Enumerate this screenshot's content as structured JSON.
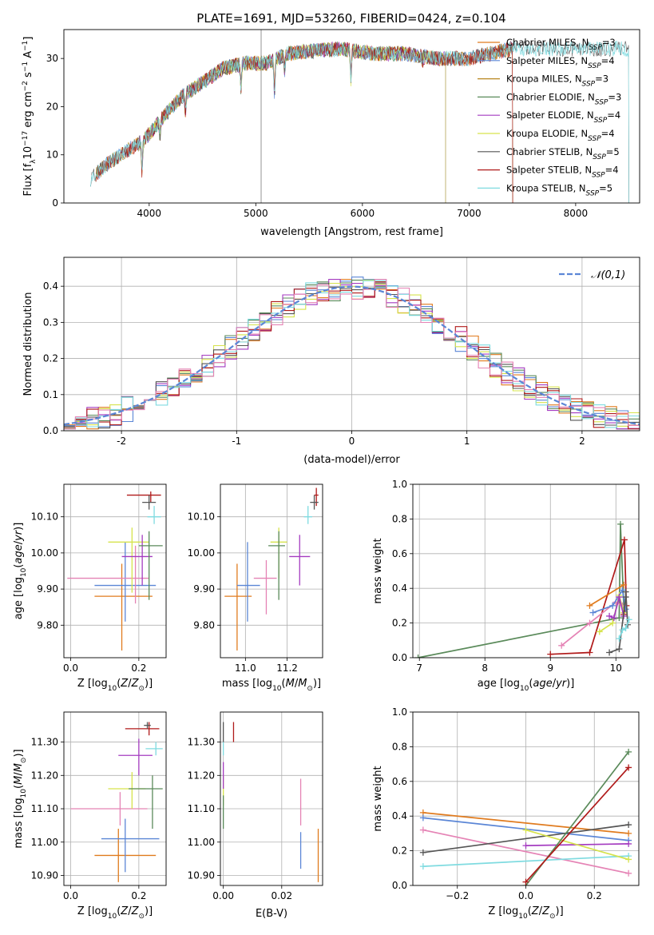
{
  "title": "PLATE=1691, MJD=53260, FIBERID=0424, z=0.104",
  "colors": {
    "chabrier_miles": "#e07b1e",
    "salpeter_miles": "#5b86d6",
    "kroupa_miles": "#b8861e",
    "chabrier_elodie": "#5a8a5a",
    "salpeter_elodie": "#a43bc0",
    "kroupa_elodie": "#d6e34c",
    "chabrier_stelib": "#555555",
    "salpeter_stelib": "#b01a1a",
    "kroupa_stelib": "#7fdbe0",
    "pink": "#e583b5",
    "normal": "#5b86d6",
    "grid": "#b0b0b0"
  },
  "chart_data": [
    {
      "type": "line",
      "xlabel": "wavelength [Angstrom, rest frame]",
      "ylabel": "Flux [f_λ 10^-17 erg cm^-2 s^-1 A^-1]",
      "xlim": [
        3200,
        8600
      ],
      "ylim": [
        0,
        36
      ],
      "xticks": [
        4000,
        5000,
        6000,
        7000,
        8000
      ],
      "yticks": [
        0,
        10,
        20,
        30
      ],
      "legend_position": "right",
      "series": [
        {
          "name": "Chabrier MILES, N_SSP=3",
          "key": "chabrier_miles",
          "range": [
            3500,
            7410
          ]
        },
        {
          "name": "Salpeter MILES, N_SSP=4",
          "key": "salpeter_miles",
          "range": [
            3500,
            7410
          ]
        },
        {
          "name": "Kroupa MILES, N_SSP=3",
          "key": "kroupa_miles",
          "range": [
            3500,
            7410
          ]
        },
        {
          "name": "Chabrier ELODIE, N_SSP=3",
          "key": "chabrier_elodie",
          "range": [
            3900,
            6780
          ]
        },
        {
          "name": "Salpeter ELODIE, N_SSP=4",
          "key": "salpeter_elodie",
          "range": [
            3900,
            6780
          ]
        },
        {
          "name": "Kroupa ELODIE, N_SSP=4",
          "key": "kroupa_elodie",
          "range": [
            3900,
            6780
          ]
        },
        {
          "name": "Chabrier STELIB, N_SSP=5",
          "key": "chabrier_stelib",
          "range": [
            3450,
            8500
          ]
        },
        {
          "name": "Salpeter STELIB, N_SSP=4",
          "key": "salpeter_stelib",
          "range": [
            3500,
            7410
          ]
        },
        {
          "name": "Kroupa STELIB, N_SSP=5",
          "key": "kroupa_stelib",
          "range": [
            3450,
            8500
          ]
        }
      ],
      "continuum": {
        "x": [
          3450,
          3600,
          3800,
          3950,
          4100,
          4300,
          4500,
          4700,
          4900,
          5100,
          5300,
          5500,
          5800,
          6100,
          6400,
          6700,
          7000,
          7400
        ],
        "y": [
          5,
          8,
          11,
          13,
          17,
          22,
          25,
          28,
          29,
          29,
          31,
          31.5,
          32,
          31,
          31,
          30,
          30,
          32
        ]
      }
    },
    {
      "type": "histogram",
      "xlabel": "(data-model)/error",
      "ylabel": "Normed distribution",
      "xlim": [
        -2.5,
        2.5
      ],
      "ylim": [
        0,
        0.48
      ],
      "xticks": [
        -2,
        -1,
        0,
        1,
        2
      ],
      "yticks": [
        0.0,
        0.1,
        0.2,
        0.3,
        0.4
      ],
      "bin_width": 0.1,
      "legend": "𝒩(0,1)",
      "legend_position": "top-right"
    },
    {
      "type": "errorbar",
      "xlabel": "Z [log10(Z/Z⊙)]",
      "ylabel": "age  [log10(age/yr)]",
      "xlim": [
        -0.02,
        0.28
      ],
      "ylim": [
        9.71,
        10.19
      ],
      "xticks": [
        0.0,
        0.2
      ],
      "yticks": [
        9.8,
        9.9,
        10.0,
        10.1
      ],
      "points": [
        {
          "key": "chabrier_miles",
          "x": 0.15,
          "xerr": [
            0.08,
            0.09
          ],
          "y": 9.88,
          "yerr": [
            0.15,
            0.09
          ]
        },
        {
          "key": "salpeter_miles",
          "x": 0.16,
          "xerr": [
            0.09,
            0.09
          ],
          "y": 9.91,
          "yerr": [
            0.1,
            0.12
          ]
        },
        {
          "key": "pink",
          "x": 0.19,
          "xerr": [
            0.2,
            0.04
          ],
          "y": 9.93,
          "yerr": [
            0.07,
            0.09
          ]
        },
        {
          "key": "kroupa_elodie",
          "x": 0.18,
          "xerr": [
            0.07,
            0.05
          ],
          "y": 10.03,
          "yerr": [
            0.14,
            0.04
          ]
        },
        {
          "key": "salpeter_elodie",
          "x": 0.21,
          "xerr": [
            0.06,
            0.03
          ],
          "y": 9.99,
          "yerr": [
            0.08,
            0.06
          ]
        },
        {
          "key": "chabrier_elodie",
          "x": 0.23,
          "xerr": [
            0.03,
            0.04
          ],
          "y": 10.02,
          "yerr": [
            0.15,
            0.04
          ]
        },
        {
          "key": "kroupa_stelib",
          "x": 0.245,
          "xerr": [
            0.02,
            0.02
          ],
          "y": 10.1,
          "yerr": [
            0.02,
            0.03
          ]
        },
        {
          "key": "salpeter_stelib",
          "x": 0.235,
          "xerr": [
            0.07,
            0.03
          ],
          "y": 10.16,
          "yerr": [
            0.02,
            0.01
          ]
        },
        {
          "key": "chabrier_stelib",
          "x": 0.23,
          "xerr": [
            0.02,
            0.02
          ],
          "y": 10.14,
          "yerr": [
            0.02,
            0.02
          ]
        }
      ]
    },
    {
      "type": "errorbar",
      "xlabel": "mass [log10(M/M⊙)]",
      "ylabel": "",
      "xlim": [
        10.88,
        11.37
      ],
      "ylim": [
        9.71,
        10.19
      ],
      "xticks": [
        11.0,
        11.2
      ],
      "yticks": [
        9.8,
        9.9,
        10.0,
        10.1
      ],
      "points": [
        {
          "key": "chabrier_miles",
          "x": 10.96,
          "xerr": [
            0.06,
            0.07
          ],
          "y": 9.88,
          "yerr": [
            0.15,
            0.09
          ]
        },
        {
          "key": "salpeter_miles",
          "x": 11.01,
          "xerr": [
            0.05,
            0.06
          ],
          "y": 9.91,
          "yerr": [
            0.1,
            0.12
          ]
        },
        {
          "key": "pink",
          "x": 11.1,
          "xerr": [
            0.06,
            0.05
          ],
          "y": 9.93,
          "yerr": [
            0.1,
            0.05
          ]
        },
        {
          "key": "kroupa_elodie",
          "x": 11.16,
          "xerr": [
            0.04,
            0.04
          ],
          "y": 10.03,
          "yerr": [
            0.1,
            0.04
          ]
        },
        {
          "key": "chabrier_elodie",
          "x": 11.16,
          "xerr": [
            0.05,
            0.03
          ],
          "y": 10.02,
          "yerr": [
            0.15,
            0.04
          ]
        },
        {
          "key": "salpeter_elodie",
          "x": 11.26,
          "xerr": [
            0.05,
            0.05
          ],
          "y": 9.99,
          "yerr": [
            0.08,
            0.06
          ]
        },
        {
          "key": "kroupa_stelib",
          "x": 11.3,
          "xerr": [
            0.02,
            0.02
          ],
          "y": 10.1,
          "yerr": [
            0.02,
            0.03
          ]
        },
        {
          "key": "salpeter_stelib",
          "x": 11.34,
          "xerr": [
            0.01,
            0.01
          ],
          "y": 10.16,
          "yerr": [
            0.03,
            0.02
          ]
        },
        {
          "key": "chabrier_stelib",
          "x": 11.33,
          "xerr": [
            0.02,
            0.02
          ],
          "y": 10.14,
          "yerr": [
            0.02,
            0.02
          ]
        }
      ]
    },
    {
      "type": "line",
      "xlabel": "age  [log10(age/yr)]",
      "ylabel": "mass weight",
      "xlim": [
        6.9,
        10.35
      ],
      "ylim": [
        0,
        1
      ],
      "xticks": [
        7,
        8,
        9,
        10
      ],
      "yticks": [
        0.0,
        0.2,
        0.4,
        0.6,
        0.8,
        1.0
      ],
      "series": [
        {
          "key": "chabrier_elodie",
          "x": [
            6.98,
            10.05,
            10.07,
            10.12
          ],
          "y": [
            0.0,
            0.23,
            0.77,
            0.3
          ]
        },
        {
          "key": "salpeter_stelib",
          "x": [
            9.0,
            9.6,
            10.13,
            10.16,
            10.12
          ],
          "y": [
            0.02,
            0.03,
            0.68,
            0.3,
            0.25
          ]
        },
        {
          "key": "pink",
          "x": [
            9.17,
            9.6,
            10.0,
            10.1
          ],
          "y": [
            0.07,
            0.2,
            0.32,
            0.3
          ]
        },
        {
          "key": "chabrier_miles",
          "x": [
            9.6,
            10.12
          ],
          "y": [
            0.3,
            0.42
          ]
        },
        {
          "key": "salpeter_miles",
          "x": [
            9.65,
            9.95,
            10.1,
            10.15
          ],
          "y": [
            0.26,
            0.3,
            0.39,
            0.28
          ]
        },
        {
          "key": "kroupa_elodie",
          "x": [
            9.75,
            9.95,
            10.05,
            10.12
          ],
          "y": [
            0.15,
            0.2,
            0.36,
            0.26
          ]
        },
        {
          "key": "salpeter_elodie",
          "x": [
            9.9,
            9.97,
            10.05,
            10.12
          ],
          "y": [
            0.24,
            0.23,
            0.35,
            0.24
          ]
        },
        {
          "key": "chabrier_stelib",
          "x": [
            9.9,
            10.05,
            10.15,
            10.15,
            10.18
          ],
          "y": [
            0.03,
            0.05,
            0.35,
            0.38,
            0.19
          ]
        },
        {
          "key": "kroupa_stelib",
          "x": [
            10.05,
            10.1,
            10.15,
            10.2
          ],
          "y": [
            0.11,
            0.16,
            0.17,
            0.22
          ]
        }
      ]
    },
    {
      "type": "errorbar",
      "xlabel": "Z [log10(Z/Z⊙)]",
      "ylabel": "mass [log10(M/M⊙)]",
      "xlim": [
        -0.02,
        0.28
      ],
      "ylim": [
        10.87,
        11.39
      ],
      "xticks": [
        0.0,
        0.2
      ],
      "yticks": [
        10.9,
        11.0,
        11.1,
        11.2,
        11.3
      ],
      "points": [
        {
          "key": "chabrier_miles",
          "x": 0.14,
          "xerr": [
            0.07,
            0.11
          ],
          "y": 10.96,
          "yerr": [
            0.08,
            0.08
          ]
        },
        {
          "key": "salpeter_miles",
          "x": 0.16,
          "xerr": [
            0.07,
            0.1
          ],
          "y": 11.01,
          "yerr": [
            0.1,
            0.06
          ]
        },
        {
          "key": "pink",
          "x": 0.145,
          "xerr": [
            0.145,
            0.08
          ],
          "y": 11.1,
          "yerr": [
            0.05,
            0.05
          ]
        },
        {
          "key": "kroupa_elodie",
          "x": 0.18,
          "xerr": [
            0.07,
            0.04
          ],
          "y": 11.16,
          "yerr": [
            0.06,
            0.05
          ]
        },
        {
          "key": "chabrier_elodie",
          "x": 0.24,
          "xerr": [
            0.07,
            0.03
          ],
          "y": 11.16,
          "yerr": [
            0.12,
            0.04
          ]
        },
        {
          "key": "salpeter_elodie",
          "x": 0.2,
          "xerr": [
            0.06,
            0.04
          ],
          "y": 11.26,
          "yerr": [
            0.06,
            0.05
          ]
        },
        {
          "key": "kroupa_stelib",
          "x": 0.25,
          "xerr": [
            0.03,
            0.02
          ],
          "y": 11.28,
          "yerr": [
            0.02,
            0.02
          ]
        },
        {
          "key": "salpeter_stelib",
          "x": 0.23,
          "xerr": [
            0.07,
            0.03
          ],
          "y": 11.34,
          "yerr": [
            0.02,
            0.02
          ]
        },
        {
          "key": "chabrier_stelib",
          "x": 0.225,
          "xerr": [
            0.01,
            0.01
          ],
          "y": 11.35,
          "yerr": [
            0.01,
            0.01
          ]
        }
      ]
    },
    {
      "type": "errorbar",
      "xlabel": "E(B-V)",
      "ylabel": "",
      "xlim": [
        -0.001,
        0.034
      ],
      "ylim": [
        10.87,
        11.39
      ],
      "xticks": [
        0.0,
        0.02
      ],
      "yticks": [
        10.9,
        11.0,
        11.1,
        11.2,
        11.3
      ],
      "points": [
        {
          "key": "chabrier_miles",
          "x": 0.0325,
          "y": 10.96,
          "yerr": [
            0.08,
            0.08
          ]
        },
        {
          "key": "salpeter_miles",
          "x": 0.0265,
          "y": 11.0,
          "yerr": [
            0.08,
            0.03
          ]
        },
        {
          "key": "pink",
          "x": 0.0265,
          "y": 11.1,
          "yerr": [
            0.05,
            0.09
          ]
        },
        {
          "key": "kroupa_elodie",
          "x": 0.0,
          "y": 11.16,
          "yerr": [
            0.05,
            0.04
          ]
        },
        {
          "key": "chabrier_elodie",
          "x": 0.0,
          "y": 11.1,
          "yerr": [
            0.06,
            0.04
          ]
        },
        {
          "key": "salpeter_elodie",
          "x": 0.0,
          "y": 11.2,
          "yerr": [
            0.04,
            0.04
          ]
        },
        {
          "key": "kroupa_stelib",
          "x": 0.0,
          "y": 11.28,
          "yerr": [
            0.02,
            0.02
          ]
        },
        {
          "key": "salpeter_stelib",
          "x": 0.0035,
          "y": 11.33,
          "yerr": [
            0.03,
            0.03
          ]
        },
        {
          "key": "chabrier_stelib",
          "x": 0.0,
          "y": 11.33,
          "yerr": [
            0.03,
            0.03
          ]
        }
      ]
    },
    {
      "type": "line",
      "xlabel": "Z [log10(Z/Z⊙)]",
      "ylabel": "mass weight",
      "xlim": [
        -0.33,
        0.33
      ],
      "ylim": [
        0,
        1
      ],
      "xticks": [
        -0.2,
        0.0,
        0.2
      ],
      "yticks": [
        0.0,
        0.2,
        0.4,
        0.6,
        0.8,
        1.0
      ],
      "series": [
        {
          "key": "chabrier_miles",
          "x": [
            -0.3,
            0.3
          ],
          "y": [
            0.42,
            0.3
          ]
        },
        {
          "key": "salpeter_miles",
          "x": [
            -0.3,
            0.3
          ],
          "y": [
            0.39,
            0.26
          ]
        },
        {
          "key": "pink",
          "x": [
            -0.3,
            0.3
          ],
          "y": [
            0.32,
            0.07
          ]
        },
        {
          "key": "chabrier_stelib",
          "x": [
            -0.3,
            0.3
          ],
          "y": [
            0.19,
            0.35
          ]
        },
        {
          "key": "kroupa_stelib",
          "x": [
            -0.3,
            0.3
          ],
          "y": [
            0.11,
            0.17
          ]
        },
        {
          "key": "salpeter_elodie",
          "x": [
            0.0,
            0.3
          ],
          "y": [
            0.23,
            0.24
          ]
        },
        {
          "key": "kroupa_elodie",
          "x": [
            0.0,
            0.3
          ],
          "y": [
            0.32,
            0.15
          ]
        },
        {
          "key": "chabrier_elodie",
          "x": [
            0.0,
            0.3
          ],
          "y": [
            0.0,
            0.77
          ]
        },
        {
          "key": "salpeter_stelib",
          "x": [
            0.0,
            0.3
          ],
          "y": [
            0.02,
            0.68
          ]
        }
      ]
    }
  ]
}
